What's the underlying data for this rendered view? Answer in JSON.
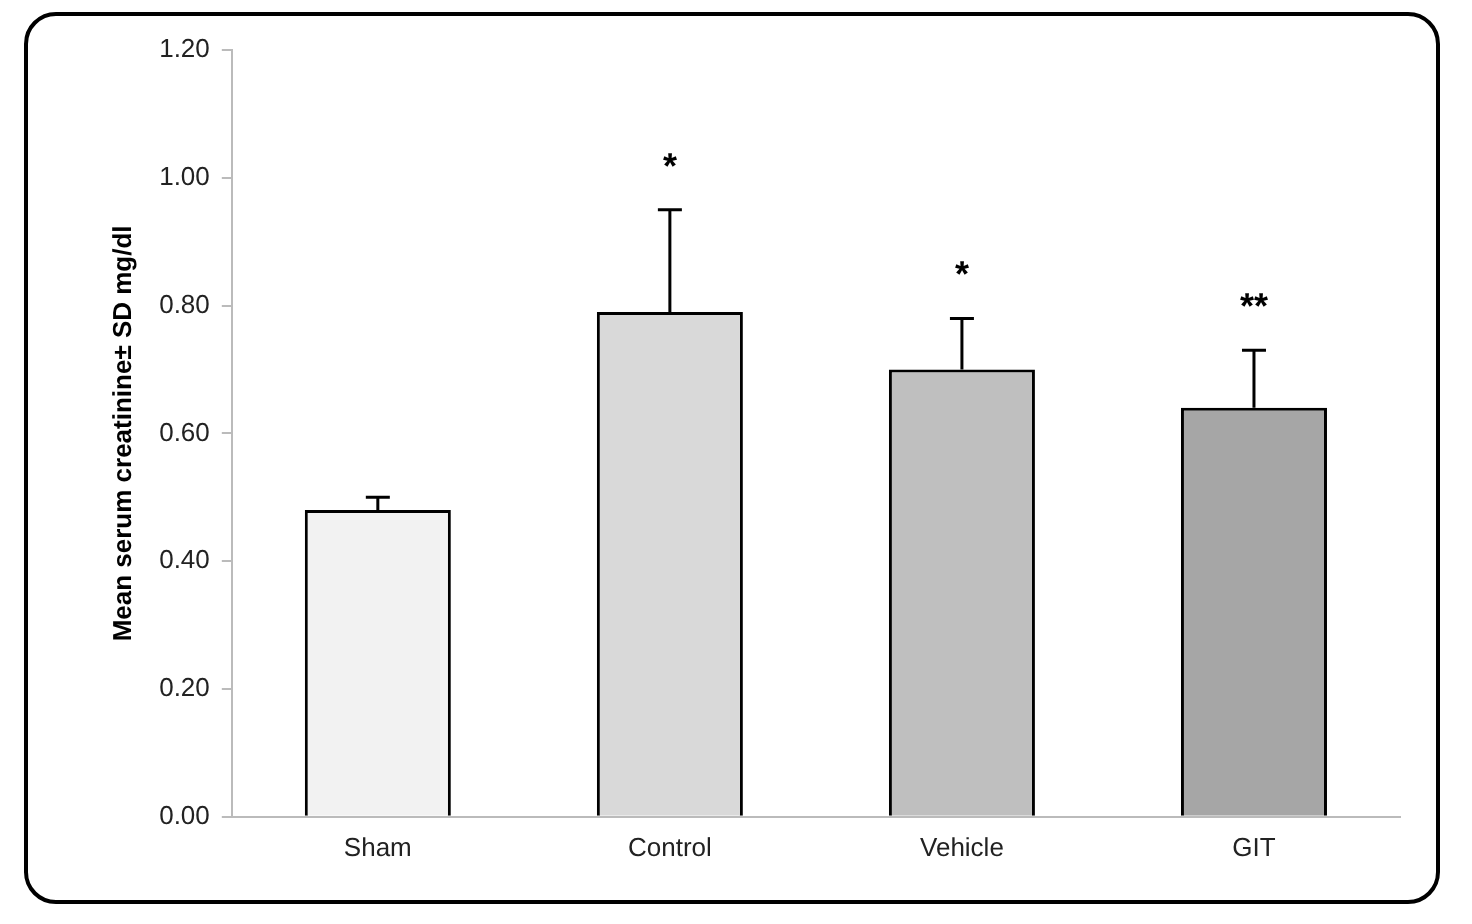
{
  "chart_data": {
    "type": "bar",
    "ylabel": "Mean serum creatinine± SD mg/dl",
    "categories": [
      "Sham",
      "Control",
      "Vehicle",
      "GIT"
    ],
    "values": [
      0.48,
      0.79,
      0.7,
      0.64
    ],
    "colors": [
      "#f2f2f2",
      "#d9d9d9",
      "#bfbfbf",
      "#a6a6a6"
    ],
    "errors": [
      [
        0.48,
        0.5
      ],
      [
        0.79,
        0.95
      ],
      [
        0.7,
        0.78
      ],
      [
        0.64,
        0.73
      ]
    ],
    "ylim": [
      0,
      1.2
    ],
    "yticks": [
      {
        "value": 0,
        "label": "0.00"
      },
      {
        "value": 0.2,
        "label": "0.20"
      },
      {
        "value": 0.4,
        "label": "0.40"
      },
      {
        "value": 0.6,
        "label": "0.60"
      },
      {
        "value": 0.8,
        "label": "0.80"
      },
      {
        "value": 1,
        "label": "1.00"
      },
      {
        "value": 1.2,
        "label": "1.20"
      }
    ],
    "annotations": [
      {
        "text": "*",
        "x": "Control",
        "y": 0.95
      },
      {
        "text": "*",
        "x": "Vehicle",
        "y": 0.78
      },
      {
        "text": "**",
        "x": "GIT",
        "y": 0.73
      }
    ],
    "grid": false,
    "legend": false
  }
}
